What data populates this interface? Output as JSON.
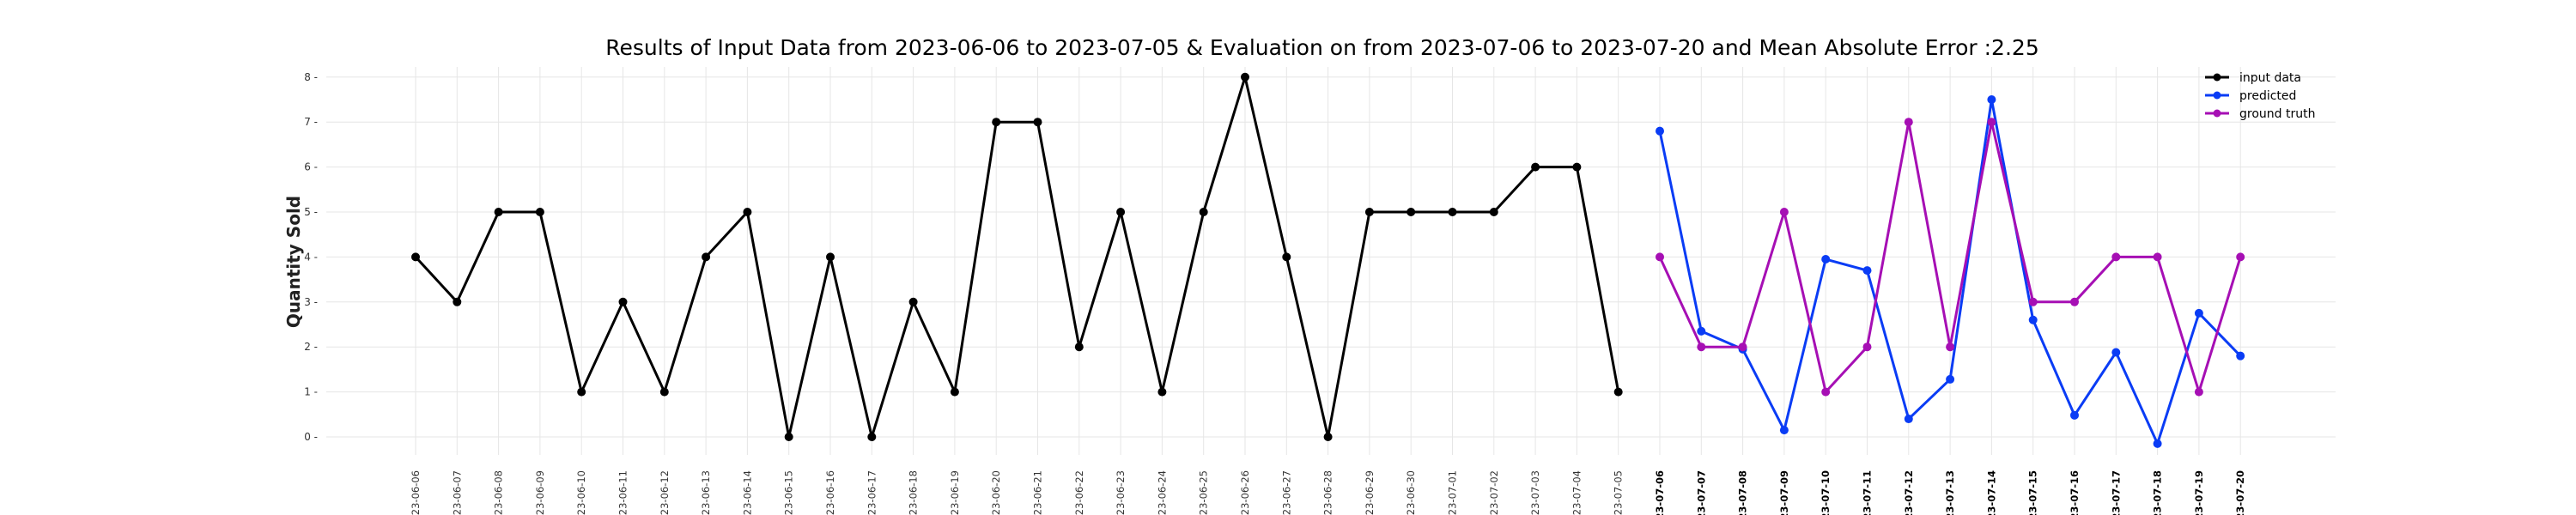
{
  "chart_data": {
    "type": "line",
    "title": "Results of Input Data from 2023-06-06 to 2023-07-05 & Evaluation on from 2023-07-06 to 2023-07-20 and Mean Absolute Error  :2.25",
    "xlabel": "",
    "ylabel": "Quantity Sold",
    "ylim": [
      -0.6,
      8.5
    ],
    "yticks": [
      "0",
      "1",
      "2",
      "3",
      "4",
      "5",
      "6",
      "7",
      "8"
    ],
    "grid": true,
    "legend_position": "top-right",
    "x": [
      "2023-06-06",
      "2023-06-07",
      "2023-06-08",
      "2023-06-09",
      "2023-06-10",
      "2023-06-11",
      "2023-06-12",
      "2023-06-13",
      "2023-06-14",
      "2023-06-15",
      "2023-06-16",
      "2023-06-17",
      "2023-06-18",
      "2023-06-19",
      "2023-06-20",
      "2023-06-21",
      "2023-06-22",
      "2023-06-23",
      "2023-06-24",
      "2023-06-25",
      "2023-06-26",
      "2023-06-27",
      "2023-06-28",
      "2023-06-29",
      "2023-06-30",
      "2023-07-01",
      "2023-07-02",
      "2023-07-03",
      "2023-07-04",
      "2023-07-05",
      "2023-07-06",
      "2023-07-07",
      "2023-07-08",
      "2023-07-09",
      "2023-07-10",
      "2023-07-11",
      "2023-07-12",
      "2023-07-13",
      "2023-07-14",
      "2023-07-15",
      "2023-07-16",
      "2023-07-17",
      "2023-07-18",
      "2023-07-19",
      "2023-07-20"
    ],
    "xtick_labels": [
      "-23-06-06",
      "-23-06-07",
      "-23-06-08",
      "-23-06-09",
      "-23-06-10",
      "-23-06-11",
      "-23-06-12",
      "-23-06-13",
      "-23-06-14",
      "-23-06-15",
      "-23-06-16",
      "-23-06-17",
      "-23-06-18",
      "-23-06-19",
      "-23-06-20",
      "-23-06-21",
      "-23-06-22",
      "-23-06-23",
      "-23-06-24",
      "-23-06-25",
      "-23-06-26",
      "-23-06-27",
      "-23-06-28",
      "-23-06-29",
      "-23-06-30",
      "-23-07-01",
      "-23-07-02",
      "-23-07-03",
      "-23-07-04",
      "-23-07-05",
      "-23-07-06",
      "-23-07-07",
      "-23-07-08",
      "-23-07-09",
      "-23-07-10",
      "-23-07-11",
      "-23-07-12",
      "-23-07-13",
      "-23-07-14",
      "-23-07-15",
      "-23-07-16",
      "-23-07-17",
      "-23-07-18",
      "-23-07-19",
      "-23-07-20"
    ],
    "bold_tick_from": "2023-07-06",
    "series": [
      {
        "name": "input data",
        "color": "#000000",
        "x": [
          "2023-06-06",
          "2023-06-07",
          "2023-06-08",
          "2023-06-09",
          "2023-06-10",
          "2023-06-11",
          "2023-06-12",
          "2023-06-13",
          "2023-06-14",
          "2023-06-15",
          "2023-06-16",
          "2023-06-17",
          "2023-06-18",
          "2023-06-19",
          "2023-06-20",
          "2023-06-21",
          "2023-06-22",
          "2023-06-23",
          "2023-06-24",
          "2023-06-25",
          "2023-06-26",
          "2023-06-27",
          "2023-06-28",
          "2023-06-29",
          "2023-06-30",
          "2023-07-01",
          "2023-07-02",
          "2023-07-03",
          "2023-07-04",
          "2023-07-05"
        ],
        "values": [
          4,
          3,
          5,
          5,
          1,
          3,
          1,
          4,
          5,
          0,
          4,
          0,
          3,
          1,
          7,
          7,
          2,
          5,
          1,
          5,
          8,
          4,
          0,
          5,
          5,
          5,
          5,
          6,
          6,
          1
        ]
      },
      {
        "name": "predicted",
        "color": "#0a3cf5",
        "x": [
          "2023-07-06",
          "2023-07-07",
          "2023-07-08",
          "2023-07-09",
          "2023-07-10",
          "2023-07-11",
          "2023-07-12",
          "2023-07-13",
          "2023-07-14",
          "2023-07-15",
          "2023-07-16",
          "2023-07-17",
          "2023-07-18",
          "2023-07-19",
          "2023-07-20"
        ],
        "values": [
          6.8,
          2.35,
          1.95,
          0.15,
          3.95,
          3.7,
          0.4,
          1.28,
          7.5,
          2.6,
          0.48,
          1.88,
          -0.15,
          2.75,
          1.8
        ]
      },
      {
        "name": "ground truth",
        "color": "#a60fb4",
        "x": [
          "2023-07-06",
          "2023-07-07",
          "2023-07-08",
          "2023-07-09",
          "2023-07-10",
          "2023-07-11",
          "2023-07-12",
          "2023-07-13",
          "2023-07-14",
          "2023-07-15",
          "2023-07-16",
          "2023-07-17",
          "2023-07-18",
          "2023-07-19",
          "2023-07-20"
        ],
        "values": [
          4,
          2,
          2,
          5,
          1,
          2,
          7,
          2,
          7,
          3,
          3,
          4,
          4,
          1,
          4
        ]
      }
    ]
  }
}
